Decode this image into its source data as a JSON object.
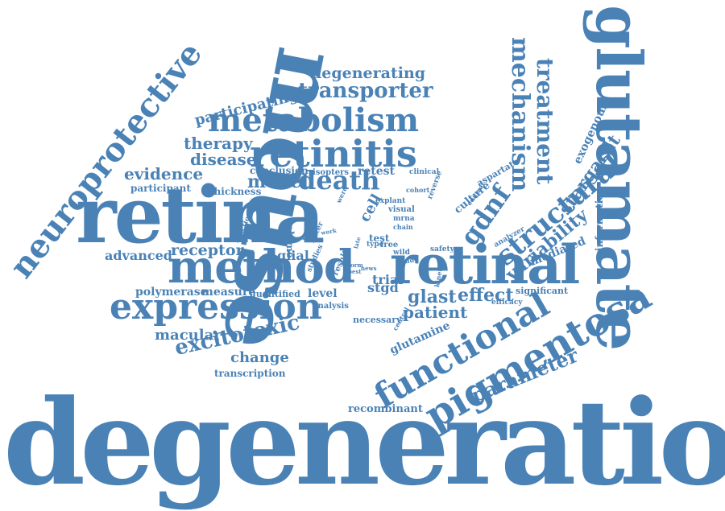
{
  "color": "#4a82b6",
  "words": {
    "degeneration": "degeneration",
    "mouse": "mouse",
    "retina": "retina",
    "glutamate": "glutamate",
    "retinal": "retinal",
    "method": "method",
    "neuroprotective": "neuroprotective",
    "pigmentosa": "pigmentosa",
    "expression": "expression",
    "functional": "functional",
    "retinitis": "retinitis",
    "metabolism": "metabolism",
    "structural": "structural",
    "gdnf": "gdnf",
    "transporter": "transporter",
    "mechanism": "mechanism",
    "treatment": "treatment",
    "excitotoxic": "excitotoxic",
    "parameter": "parameter",
    "variability": "variability",
    "death": "death",
    "stargardt": "stargardt",
    "degenerating": "degenerating",
    "participating": "participating",
    "therapy": "therapy",
    "disease": "disease",
    "model": "model",
    "evidence": "evidence",
    "receptor": "receptor",
    "patient": "patient",
    "effect": "effect",
    "glast": "glast",
    "change": "change",
    "macular": "macular",
    "advanced": "advanced",
    "polymerase": "polymerase",
    "measure": "measure",
    "level": "level",
    "trial": "trial",
    "stgd": "stgd",
    "glial": "glial",
    "cell": "cell",
    "exogenous": "exogenous",
    "mediated": "mediated",
    "information": "information",
    "significant": "significant",
    "recombinant": "recombinant",
    "transcription": "transcription",
    "glutamine": "glutamine",
    "necessary": "necessary",
    "quantified": "quantified",
    "analysis": "analysis",
    "volume": "volume",
    "thickness": "thickness",
    "participant": "participant",
    "conclusion": "conclusion",
    "isopters": "isopters",
    "retest": "retest",
    "clinical": "clinical",
    "culture": "culture",
    "aspartate": "aspartate",
    "explant": "explant",
    "visual": "visual",
    "mrna": "mrna",
    "chain": "chain",
    "test": "test",
    "free": "free",
    "wild": "wild",
    "type": "type",
    "safety": "safety",
    "efficacy": "efficacy",
    "analyzer": "analyzer",
    "reaction": "reaction",
    "result": "result",
    "present": "present",
    "letter": "letter",
    "studies": "studies",
    "kinetic": "kinetic",
    "control": "control",
    "reverse": "reverse",
    "cohort": "cohort",
    "central": "central",
    "work": "work",
    "were": "were",
    "study": "study",
    "form": "form",
    "late": "late",
    "best": "best",
    "news": "news"
  }
}
